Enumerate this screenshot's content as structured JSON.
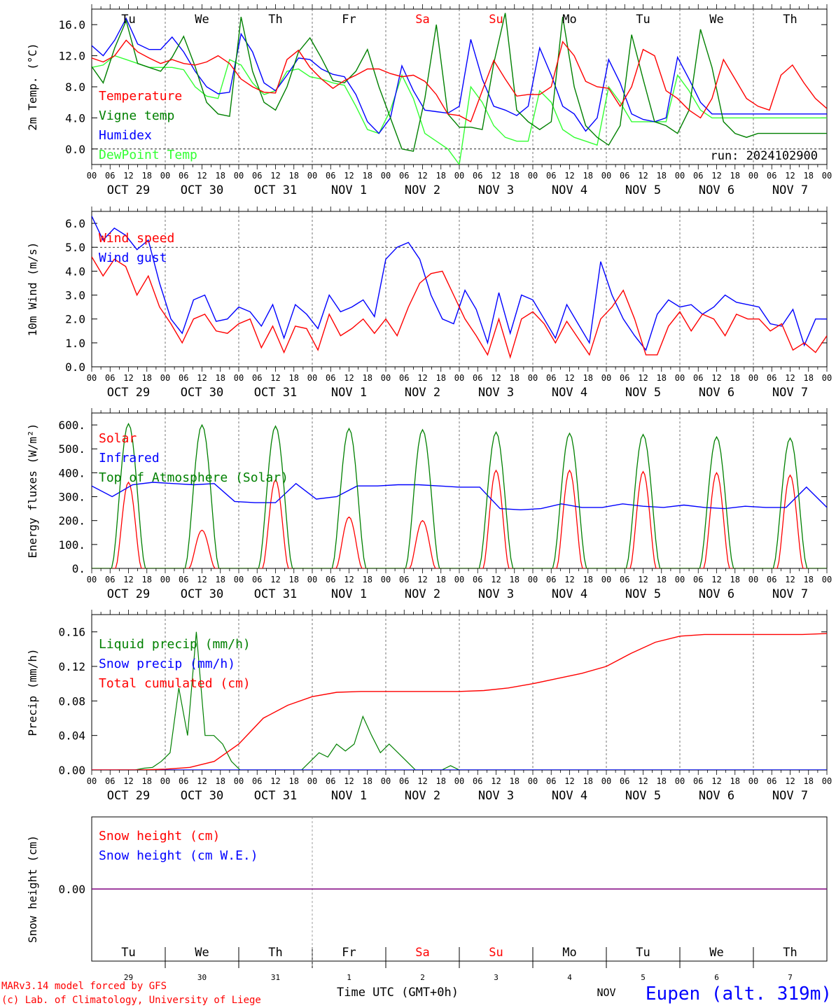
{
  "colors": {
    "red": "#ff0000",
    "green": "#008000",
    "blue": "#0000ff",
    "lightgreen": "#33ff33",
    "purple": "#800080",
    "black": "#000000"
  },
  "x_axis": {
    "hour_labels": [
      "00",
      "06",
      "12",
      "18"
    ],
    "date_labels": [
      "OCT 29",
      "OCT 30",
      "OCT 31",
      "NOV 1",
      "NOV 2",
      "NOV 3",
      "NOV 4",
      "NOV 5",
      "NOV 6",
      "NOV 7"
    ],
    "day_labels": [
      {
        "text": "Tu",
        "color": "black"
      },
      {
        "text": "We",
        "color": "black"
      },
      {
        "text": "Th",
        "color": "black"
      },
      {
        "text": "Fr",
        "color": "black"
      },
      {
        "text": "Sa",
        "color": "red"
      },
      {
        "text": "Su",
        "color": "red"
      },
      {
        "text": "Mo",
        "color": "black"
      },
      {
        "text": "Tu",
        "color": "black"
      },
      {
        "text": "We",
        "color": "black"
      },
      {
        "text": "Th",
        "color": "black"
      }
    ],
    "day_numbers": [
      "29",
      "30",
      "31",
      "1",
      "2",
      "3",
      "4",
      "5",
      "6",
      "7"
    ],
    "month_label": "NOV",
    "title": "Time UTC (GMT+0h)"
  },
  "footer": {
    "credit_line1": "MARv3.14 model forced by GFS",
    "credit_line2": "(c) Lab. of Climatology, University of Liege",
    "station": "Eupen (alt. 319m)"
  },
  "chart_data": [
    {
      "type": "line",
      "ylabel": "2m Temp. (°C)",
      "ylim": [
        -2,
        18
      ],
      "yticks": [
        "0.0",
        "4.0",
        "8.0",
        "12.0",
        "16.0"
      ],
      "annotation": "run: 2024102900",
      "x_hours_per_point": 3,
      "series": [
        {
          "name": "Temperature",
          "color": "red",
          "values": [
            11.7,
            11.2,
            12,
            14,
            12.5,
            11.7,
            11,
            11.5,
            11,
            10.8,
            11.2,
            12,
            11,
            9,
            8,
            7.3,
            7.2,
            11.5,
            12.7,
            10.5,
            9,
            7.8,
            8.8,
            9.5,
            10.3,
            10.3,
            9.7,
            9.3,
            9.5,
            8.7,
            7,
            4.5,
            4.3,
            3.5,
            7.5,
            11.4,
            9,
            6.8,
            7,
            7,
            8,
            13.8,
            12,
            8.7,
            8,
            7.8,
            5.5,
            8,
            12.8,
            12,
            7.5,
            6.5,
            5,
            4,
            6.5,
            11.5,
            9,
            6.5,
            5.5,
            5,
            9.5,
            10.8,
            8.5,
            6.5,
            5.2
          ]
        },
        {
          "name": "Vigne temp",
          "color": "green",
          "values": [
            10.6,
            8.5,
            13,
            16.5,
            11,
            10.5,
            10,
            11.8,
            14.5,
            10.6,
            6,
            4.5,
            4.2,
            17,
            10,
            6,
            5,
            8,
            12.5,
            14.3,
            11.7,
            8.8,
            8.5,
            10,
            12.8,
            8,
            4,
            0,
            -0.3,
            6.5,
            16,
            4.5,
            2.8,
            2.8,
            2.5,
            11,
            17.5,
            5,
            3.5,
            2.5,
            3.5,
            17,
            8,
            3,
            1.5,
            0.5,
            3,
            14.7,
            9,
            3.5,
            3,
            2,
            5,
            15.4,
            10.5,
            3.5,
            2,
            1.5,
            2,
            2,
            2,
            2,
            2,
            2,
            2
          ]
        },
        {
          "name": "Humidex",
          "color": "blue",
          "values": [
            13.3,
            12,
            14,
            16.8,
            13.5,
            12.8,
            12.8,
            14.4,
            12.5,
            10,
            8,
            7.1,
            7.3,
            14.8,
            12.5,
            8.5,
            7.5,
            9.5,
            11.7,
            11.5,
            10.3,
            9.6,
            9.3,
            7,
            3.5,
            2,
            4,
            10.7,
            7.5,
            5,
            4.8,
            4.6,
            5.5,
            14.1,
            9,
            5.5,
            5,
            4.3,
            5.5,
            13,
            9.5,
            5.5,
            4.5,
            2.3,
            4,
            11.5,
            8.5,
            4.5,
            3.8,
            3.5,
            4,
            11.8,
            9,
            6,
            4.5,
            4.5,
            4.5,
            4.5,
            4.5,
            4.5,
            4.5,
            4.5,
            4.5,
            4.5,
            4.5
          ]
        },
        {
          "name": "DewPoint Temp",
          "color": "lightgreen",
          "values": [
            10.5,
            10.8,
            12,
            11.5,
            11,
            10.5,
            10.5,
            10.5,
            10.2,
            8,
            6.8,
            6.5,
            11.5,
            10.8,
            8.5,
            7,
            7.5,
            10,
            10.3,
            9.3,
            9,
            8.5,
            8.2,
            5.5,
            2.5,
            2,
            5,
            9.5,
            6.5,
            2,
            1,
            0,
            -2,
            8,
            6,
            3,
            1.5,
            1,
            1,
            7.5,
            6,
            2.5,
            1.5,
            1,
            0.5,
            8,
            6,
            3.5,
            3.5,
            3.5,
            3.5,
            9.5,
            7.5,
            5,
            4,
            4,
            4,
            4,
            4,
            4,
            4,
            4,
            4,
            4,
            4
          ]
        }
      ]
    },
    {
      "type": "line",
      "ylabel": "10m Wind (m/s)",
      "ylim": [
        0,
        6.5
      ],
      "yticks": [
        "0.0",
        "1.0",
        "2.0",
        "3.0",
        "4.0",
        "5.0",
        "6.0"
      ],
      "reference_line": 5.0,
      "series": [
        {
          "name": "Wind speed",
          "color": "red",
          "values": [
            4.6,
            3.8,
            4.5,
            4.2,
            3.0,
            3.8,
            2.5,
            1.8,
            1.0,
            2.0,
            2.2,
            1.5,
            1.4,
            1.8,
            2.0,
            0.8,
            1.7,
            0.6,
            1.7,
            1.6,
            0.7,
            2.2,
            1.3,
            1.6,
            2.0,
            1.4,
            2.0,
            1.3,
            2.5,
            3.5,
            3.9,
            4.0,
            3.0,
            2.0,
            1.3,
            0.5,
            2.0,
            0.4,
            2.0,
            2.3,
            1.8,
            1.0,
            1.9,
            1.2,
            0.5,
            2.0,
            2.5,
            3.2,
            2.0,
            0.5,
            0.5,
            1.7,
            2.3,
            1.5,
            2.2,
            2.0,
            1.3,
            2.2,
            2.0,
            2.0,
            1.5,
            1.8,
            0.7,
            1.0,
            0.6,
            1.3
          ]
        },
        {
          "name": "Wind gust",
          "color": "blue",
          "values": [
            6.3,
            5.3,
            5.8,
            5.5,
            4.9,
            5.3,
            3.5,
            2.0,
            1.4,
            2.8,
            3.0,
            1.9,
            2.0,
            2.5,
            2.3,
            1.7,
            2.6,
            1.2,
            2.6,
            2.2,
            1.6,
            3.0,
            2.3,
            2.5,
            2.8,
            2.1,
            4.5,
            5.0,
            5.2,
            4.5,
            3.0,
            2.0,
            1.8,
            3.2,
            2.4,
            1.0,
            3.1,
            1.4,
            3.0,
            2.8,
            2.0,
            1.2,
            2.6,
            1.8,
            1.0,
            4.4,
            3.0,
            2.0,
            1.3,
            0.7,
            2.2,
            2.8,
            2.5,
            2.6,
            2.2,
            2.5,
            3.0,
            2.7,
            2.6,
            2.5,
            1.8,
            1.7,
            2.4,
            0.9,
            2.0,
            2.0
          ]
        }
      ]
    },
    {
      "type": "line",
      "ylabel": "Energy fluxes (W/m²)",
      "ylim": [
        0,
        650
      ],
      "yticks": [
        "0.",
        "100.",
        "200.",
        "300.",
        "400.",
        "500.",
        "600."
      ],
      "series": [
        {
          "name": "Solar",
          "color": "red",
          "peaks": [
            360,
            160,
            370,
            215,
            200,
            410,
            410,
            405,
            400,
            390
          ]
        },
        {
          "name": "Infrared",
          "color": "blue",
          "values": [
            345,
            300,
            350,
            360,
            355,
            350,
            355,
            280,
            275,
            275,
            355,
            290,
            300,
            345,
            345,
            350,
            350,
            345,
            340,
            340,
            250,
            245,
            250,
            270,
            255,
            255,
            270,
            260,
            255,
            265,
            255,
            250,
            260,
            255,
            255,
            340,
            255
          ]
        },
        {
          "name": "Top of Atmosphere (Solar)",
          "color": "green",
          "peaks": [
            605,
            600,
            595,
            585,
            580,
            570,
            565,
            560,
            550,
            545
          ]
        }
      ]
    },
    {
      "type": "line",
      "ylabel": "Precip (mm/h)",
      "ylim": [
        0,
        0.18
      ],
      "yticks": [
        "0.00",
        "0.04",
        "0.08",
        "0.12",
        "0.16"
      ],
      "series": [
        {
          "name": "Liquid precip (mm/h)",
          "color": "green",
          "values": [
            0,
            0,
            0,
            0.002,
            0.003,
            0.01,
            0.02,
            0.095,
            0.04,
            0.16,
            0.04,
            0.04,
            0.03,
            0.01,
            0,
            0,
            0,
            0,
            0,
            0,
            0,
            0,
            0.01,
            0.02,
            0.015,
            0.03,
            0.022,
            0.03,
            0.062,
            0.04,
            0.02,
            0.03,
            0.02,
            0.01,
            0,
            0,
            0,
            0,
            0.005,
            0
          ]
        },
        {
          "name": "Snow precip (mm/h)",
          "color": "blue",
          "values": [
            0,
            0
          ]
        },
        {
          "name": "Total cumulated (cm)",
          "color": "red",
          "values": [
            0,
            0,
            0,
            0.001,
            0.003,
            0.01,
            0.03,
            0.06,
            0.075,
            0.085,
            0.09,
            0.091,
            0.091,
            0.091,
            0.091,
            0.091,
            0.092,
            0.095,
            0.1,
            0.106,
            0.112,
            0.12,
            0.135,
            0.148,
            0.155,
            0.157,
            0.157,
            0.157,
            0.157,
            0.157,
            0.158
          ]
        }
      ]
    },
    {
      "type": "line",
      "ylabel": "Snow height (cm)",
      "ylim": [
        -1,
        1
      ],
      "yticks": [
        "0.00"
      ],
      "series": [
        {
          "name": "Snow height (cm)",
          "color": "red",
          "values": [
            0,
            0
          ]
        },
        {
          "name": "Snow height (cm W.E.)",
          "color": "blue",
          "values": [
            0,
            0
          ]
        }
      ]
    }
  ]
}
